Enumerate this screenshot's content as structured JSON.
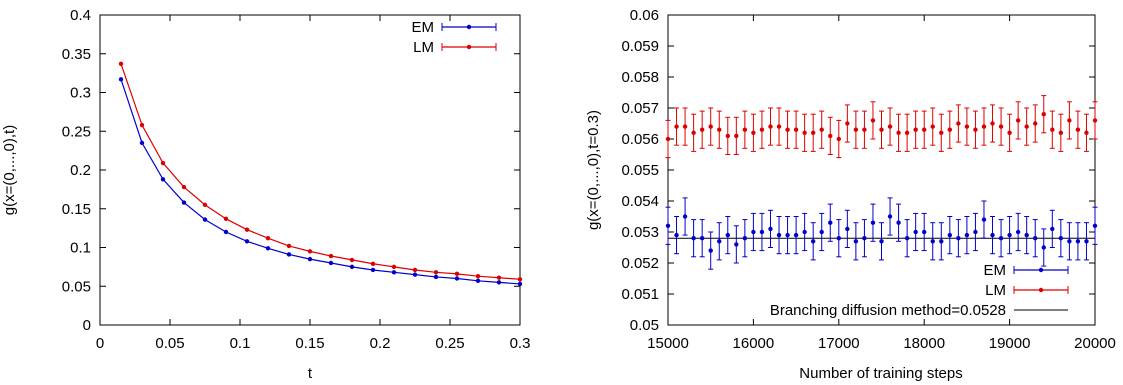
{
  "chart_data": [
    {
      "type": "line",
      "xlabel": "t",
      "ylabel": "g(x=(0,...,0),t)",
      "xlim": [
        0,
        0.3
      ],
      "ylim": [
        0,
        0.4
      ],
      "x_ticks": [
        "0",
        "0.05",
        "0.1",
        "0.15",
        "0.2",
        "0.25",
        "0.3"
      ],
      "y_ticks": [
        "0",
        "0.05",
        "0.1",
        "0.15",
        "0.2",
        "0.25",
        "0.3",
        "0.35",
        "0.4"
      ],
      "grid": false,
      "legend_position": "top-right",
      "x": [
        0.015,
        0.03,
        0.045,
        0.06,
        0.075,
        0.09,
        0.105,
        0.12,
        0.135,
        0.15,
        0.165,
        0.18,
        0.195,
        0.21,
        0.225,
        0.24,
        0.255,
        0.27,
        0.285,
        0.3
      ],
      "series": [
        {
          "name": "EM",
          "color": "#0000cc",
          "values": [
            0.317,
            0.235,
            0.188,
            0.158,
            0.136,
            0.12,
            0.108,
            0.099,
            0.091,
            0.085,
            0.08,
            0.075,
            0.071,
            0.068,
            0.065,
            0.062,
            0.06,
            0.057,
            0.055,
            0.053
          ]
        },
        {
          "name": "LM",
          "color": "#dd0000",
          "values": [
            0.337,
            0.258,
            0.209,
            0.178,
            0.155,
            0.137,
            0.123,
            0.112,
            0.102,
            0.095,
            0.089,
            0.084,
            0.079,
            0.075,
            0.071,
            0.068,
            0.066,
            0.063,
            0.061,
            0.059
          ]
        }
      ]
    },
    {
      "type": "scatter",
      "xlabel": "Number of training steps",
      "ylabel": "g(x=(0,...,0),t=0.3)",
      "xlim": [
        15000,
        20000
      ],
      "ylim": [
        0.05,
        0.06
      ],
      "x_ticks": [
        "15000",
        "16000",
        "17000",
        "18000",
        "19000",
        "20000"
      ],
      "y_ticks": [
        "0.05",
        "0.051",
        "0.052",
        "0.053",
        "0.054",
        "0.055",
        "0.056",
        "0.057",
        "0.058",
        "0.059",
        "0.06"
      ],
      "grid": false,
      "legend_position": "bottom-right",
      "x": [
        15000,
        15100,
        15200,
        15300,
        15400,
        15500,
        15600,
        15700,
        15800,
        15900,
        16000,
        16100,
        16200,
        16300,
        16400,
        16500,
        16600,
        16700,
        16800,
        16900,
        17000,
        17100,
        17200,
        17300,
        17400,
        17500,
        17600,
        17700,
        17800,
        17900,
        18000,
        18100,
        18200,
        18300,
        18400,
        18500,
        18600,
        18700,
        18800,
        18900,
        19000,
        19100,
        19200,
        19300,
        19400,
        19500,
        19600,
        19700,
        19800,
        19900,
        20000
      ],
      "series": [
        {
          "name": "EM",
          "color": "#0000cc",
          "values": [
            0.0532,
            0.0529,
            0.0535,
            0.0528,
            0.0528,
            0.0524,
            0.0527,
            0.0529,
            0.0526,
            0.0528,
            0.053,
            0.053,
            0.0531,
            0.0529,
            0.0529,
            0.0529,
            0.053,
            0.0527,
            0.053,
            0.0533,
            0.0528,
            0.0531,
            0.0527,
            0.0528,
            0.0533,
            0.0527,
            0.0535,
            0.0533,
            0.0528,
            0.053,
            0.053,
            0.0527,
            0.0527,
            0.0529,
            0.0528,
            0.0529,
            0.053,
            0.0534,
            0.0529,
            0.0528,
            0.0529,
            0.053,
            0.0529,
            0.0528,
            0.0525,
            0.0531,
            0.0528,
            0.0527,
            0.0527,
            0.0527,
            0.0532
          ],
          "errors": [
            0.0006,
            0.0006,
            0.0006,
            0.0006,
            0.0006,
            0.0006,
            0.0006,
            0.0006,
            0.0006,
            0.0006,
            0.0006,
            0.0006,
            0.0006,
            0.0006,
            0.0006,
            0.0006,
            0.0006,
            0.0006,
            0.0006,
            0.0006,
            0.0006,
            0.0006,
            0.0006,
            0.0006,
            0.0006,
            0.0006,
            0.0006,
            0.0006,
            0.0006,
            0.0006,
            0.0006,
            0.0006,
            0.0006,
            0.0006,
            0.0006,
            0.0006,
            0.0006,
            0.0006,
            0.0006,
            0.0006,
            0.0006,
            0.0006,
            0.0006,
            0.0006,
            0.0006,
            0.0006,
            0.0006,
            0.0006,
            0.0006,
            0.0006,
            0.0006
          ]
        },
        {
          "name": "LM",
          "color": "#dd0000",
          "values": [
            0.056,
            0.0564,
            0.0564,
            0.0562,
            0.0563,
            0.0564,
            0.0563,
            0.0561,
            0.0561,
            0.0563,
            0.0562,
            0.0563,
            0.0564,
            0.0564,
            0.0563,
            0.0563,
            0.0562,
            0.0562,
            0.0563,
            0.0561,
            0.056,
            0.0565,
            0.0563,
            0.0563,
            0.0566,
            0.0563,
            0.0564,
            0.0562,
            0.0562,
            0.0563,
            0.0563,
            0.0564,
            0.0562,
            0.0563,
            0.0565,
            0.0564,
            0.0563,
            0.0564,
            0.0565,
            0.0564,
            0.0562,
            0.0566,
            0.0564,
            0.0565,
            0.0568,
            0.0563,
            0.0562,
            0.0566,
            0.0563,
            0.0562,
            0.0566
          ],
          "errors": [
            0.0006,
            0.0006,
            0.0006,
            0.0006,
            0.0006,
            0.0006,
            0.0006,
            0.0006,
            0.0006,
            0.0006,
            0.0006,
            0.0006,
            0.0006,
            0.0006,
            0.0006,
            0.0006,
            0.0006,
            0.0006,
            0.0006,
            0.0006,
            0.0006,
            0.0006,
            0.0006,
            0.0006,
            0.0006,
            0.0006,
            0.0006,
            0.0006,
            0.0006,
            0.0006,
            0.0006,
            0.0006,
            0.0006,
            0.0006,
            0.0006,
            0.0006,
            0.0006,
            0.0006,
            0.0006,
            0.0006,
            0.0006,
            0.0006,
            0.0006,
            0.0006,
            0.0006,
            0.0006,
            0.0006,
            0.0006,
            0.0006,
            0.0006,
            0.0006
          ]
        },
        {
          "name": "Branching diffusion method=0.0528",
          "color": "#000000",
          "type": "hline",
          "value": 0.0528
        }
      ]
    }
  ]
}
